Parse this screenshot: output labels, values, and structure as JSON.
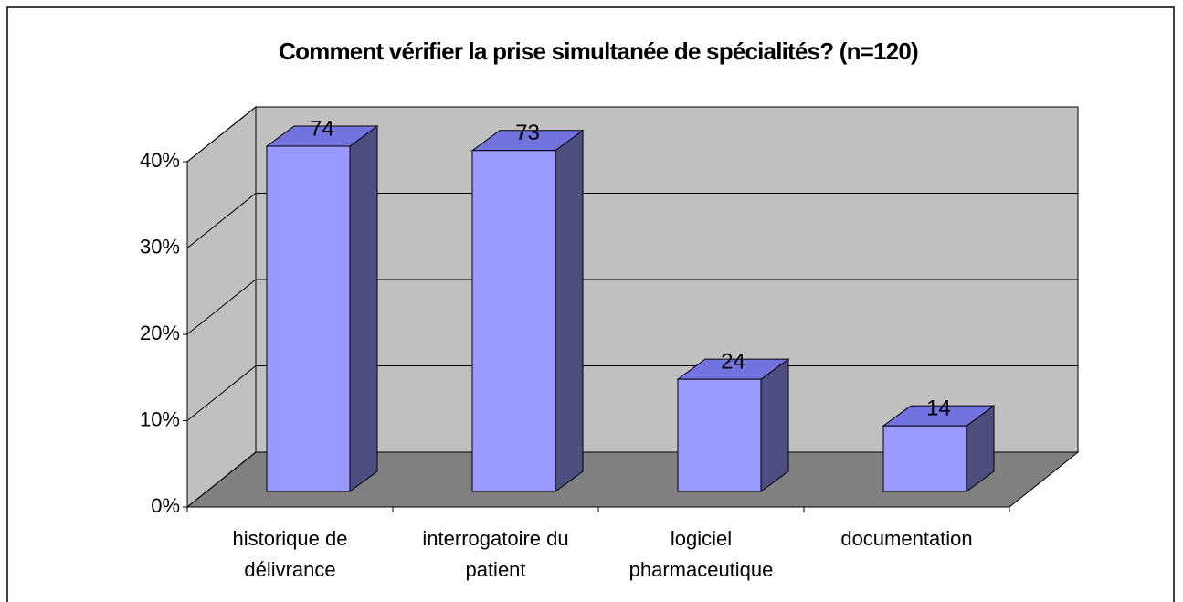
{
  "chart_data": {
    "type": "bar3d",
    "title": "Comment vérifier la prise simultanée de spécialités? (n=120)",
    "categories": [
      "historique de délivrance",
      "interrogatoire du patient",
      "logiciel pharmaceutique",
      "documentation"
    ],
    "values": [
      40,
      39.5,
      13,
      7.6
    ],
    "counts": [
      74,
      73,
      24,
      14
    ],
    "ylim": [
      0,
      40
    ],
    "yticks": [
      {
        "value": 0,
        "label": "0%"
      },
      {
        "value": 10,
        "label": "10%"
      },
      {
        "value": 20,
        "label": "20%"
      },
      {
        "value": 30,
        "label": "30%"
      },
      {
        "value": 40,
        "label": "40%"
      }
    ],
    "grid": true,
    "colors": {
      "front": "#9999ff",
      "top": "#7373e0",
      "side": "#4d4d80",
      "wall": "#c0c0c0",
      "floor": "#808080"
    }
  }
}
